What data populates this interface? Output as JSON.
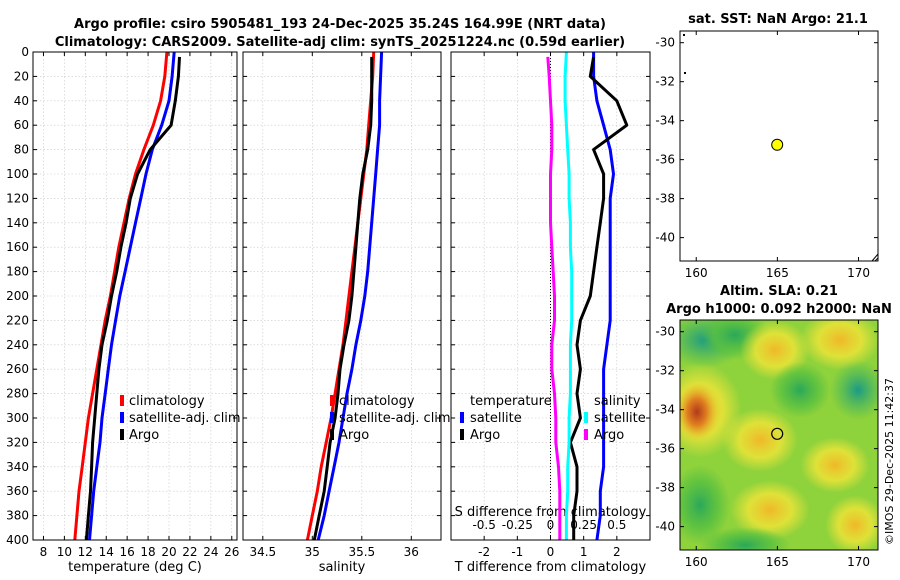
{
  "title": {
    "line1": "Argo profile: csiro 5905481_193 24-Dec-2025 35.24S 164.99E (NRT data)",
    "line2": "Climatology: CARS2009. Satellite-adj clim: synTS_20251224.nc (0.59d earlier)"
  },
  "credit": "©IMOS 29-Dec-2025 11:42:37",
  "colors": {
    "red": "#ff0000",
    "blue": "#0000ff",
    "black": "#000000",
    "magenta": "#ff00ff",
    "cyan": "#00ffff",
    "grid": "#c8c8c8",
    "marker": "#ffff00"
  },
  "chart_data": [
    {
      "id": "temperature",
      "type": "line",
      "xlabel": "temperature (deg C)",
      "ylabel": "",
      "xlim": [
        7,
        26.5
      ],
      "ylim": [
        0,
        400
      ],
      "y_inverted": true,
      "xticks": [
        8,
        10,
        12,
        14,
        16,
        18,
        20,
        22,
        24,
        26
      ],
      "yticks": [
        0,
        20,
        40,
        60,
        80,
        100,
        120,
        140,
        160,
        180,
        200,
        220,
        240,
        260,
        280,
        300,
        320,
        340,
        360,
        380,
        400
      ],
      "grid": true,
      "legend": {
        "position": "lower-right",
        "entries": [
          {
            "label": "climatology",
            "color": "#ff0000"
          },
          {
            "label": "satellite-adj. clim",
            "color": "#0000ff"
          },
          {
            "label": "Argo",
            "color": "#000000"
          }
        ]
      },
      "series": [
        {
          "name": "climatology",
          "color": "#ff0000",
          "x": [
            19.8,
            19.6,
            19.2,
            18.5,
            17.6,
            16.8,
            16.2,
            15.7,
            15.2,
            14.8,
            14.4,
            13.9,
            13.5,
            13.1,
            12.7,
            12.3,
            12.0,
            11.7,
            11.4,
            11.2,
            11.0
          ],
          "y": [
            0,
            20,
            40,
            60,
            80,
            100,
            120,
            140,
            160,
            180,
            200,
            220,
            240,
            260,
            280,
            300,
            320,
            340,
            360,
            380,
            400
          ]
        },
        {
          "name": "satellite-adj. clim",
          "color": "#0000ff",
          "x": [
            20.5,
            20.3,
            20.0,
            19.3,
            18.4,
            17.8,
            17.3,
            16.8,
            16.3,
            15.8,
            15.3,
            14.9,
            14.5,
            14.2,
            13.9,
            13.6,
            13.4,
            13.1,
            12.8,
            12.6,
            12.4
          ],
          "y": [
            0,
            20,
            40,
            60,
            80,
            100,
            120,
            140,
            160,
            180,
            200,
            220,
            240,
            260,
            280,
            300,
            320,
            340,
            360,
            380,
            400
          ]
        },
        {
          "name": "Argo",
          "color": "#000000",
          "x": [
            21.0,
            20.9,
            20.6,
            20.2,
            18.2,
            17.0,
            16.3,
            15.9,
            15.4,
            15.0,
            14.5,
            14.1,
            13.6,
            13.3,
            13.1,
            12.9,
            12.7,
            12.6,
            12.5,
            12.3,
            12.1
          ],
          "y": [
            4,
            20,
            40,
            60,
            80,
            100,
            120,
            140,
            160,
            180,
            200,
            220,
            240,
            260,
            280,
            300,
            320,
            340,
            360,
            380,
            400
          ]
        }
      ]
    },
    {
      "id": "salinity",
      "type": "line",
      "xlabel": "salinity",
      "xlim": [
        34.3,
        36.3
      ],
      "ylim": [
        0,
        400
      ],
      "y_inverted": true,
      "xticks": [
        34.5,
        35,
        35.5,
        36
      ],
      "xticklabels": [
        "34.5",
        "35",
        "35.5",
        "36"
      ],
      "grid": true,
      "legend": {
        "position": "lower-right",
        "entries": [
          {
            "label": "climatology",
            "color": "#ff0000"
          },
          {
            "label": "satellite-adj. clim",
            "color": "#0000ff"
          },
          {
            "label": "Argo",
            "color": "#000000"
          }
        ]
      },
      "series": [
        {
          "name": "climatology",
          "color": "#ff0000",
          "x": [
            35.62,
            35.61,
            35.59,
            35.57,
            35.55,
            35.52,
            35.49,
            35.46,
            35.43,
            35.4,
            35.37,
            35.34,
            35.31,
            35.27,
            35.23,
            35.19,
            35.14,
            35.09,
            35.05,
            35.0,
            34.95
          ],
          "y": [
            0,
            20,
            40,
            60,
            80,
            100,
            120,
            140,
            160,
            180,
            200,
            220,
            240,
            260,
            280,
            300,
            320,
            340,
            360,
            380,
            400
          ]
        },
        {
          "name": "satellite-adj. clim",
          "color": "#0000ff",
          "x": [
            35.7,
            35.69,
            35.68,
            35.68,
            35.66,
            35.64,
            35.62,
            35.6,
            35.58,
            35.56,
            35.53,
            35.49,
            35.44,
            35.4,
            35.35,
            35.31,
            35.27,
            35.22,
            35.17,
            35.12,
            35.06
          ],
          "y": [
            0,
            20,
            40,
            60,
            80,
            100,
            120,
            140,
            160,
            180,
            200,
            220,
            240,
            260,
            280,
            300,
            320,
            340,
            360,
            380,
            400
          ]
        },
        {
          "name": "Argo",
          "color": "#000000",
          "x": [
            35.6,
            35.6,
            35.6,
            35.59,
            35.56,
            35.51,
            35.48,
            35.46,
            35.44,
            35.42,
            35.4,
            35.37,
            35.32,
            35.28,
            35.26,
            35.23,
            35.18,
            35.15,
            35.12,
            35.07,
            35.02
          ],
          "y": [
            4,
            20,
            40,
            60,
            80,
            100,
            120,
            140,
            160,
            180,
            200,
            220,
            240,
            260,
            280,
            300,
            320,
            340,
            360,
            380,
            400
          ]
        }
      ]
    },
    {
      "id": "differences",
      "type": "line",
      "xlabel": "T difference from climatology",
      "xlabel_top": "S difference from climatology",
      "xlim": [
        -3,
        3
      ],
      "x2lim": [
        -0.75,
        0.75
      ],
      "ylim": [
        0,
        400
      ],
      "y_inverted": true,
      "xticks": [
        -2,
        -1,
        0,
        1,
        2
      ],
      "x2ticks": [
        -0.5,
        -0.25,
        0,
        0.25,
        0.5
      ],
      "x2ticklabels": [
        "-0.5",
        "-0.25",
        "0",
        "0.25",
        "0.5"
      ],
      "zero_line": "dotted",
      "grid": true,
      "legend": {
        "position": "lower",
        "entries": [
          {
            "label": "temperature",
            "color": ""
          },
          {
            "label": "satellite",
            "color": "#0000ff"
          },
          {
            "label": "Argo",
            "color": "#000000"
          },
          {
            "label": "salinity",
            "color": ""
          },
          {
            "label": "satellite",
            "color": "#00ffff"
          },
          {
            "label": "Argo",
            "color": "#ff00ff"
          }
        ]
      },
      "series": [
        {
          "name": "T satellite",
          "axis": "T",
          "color": "#0000ff",
          "x": [
            1.3,
            1.3,
            1.4,
            1.6,
            1.8,
            1.9,
            1.8,
            1.8,
            1.8,
            1.8,
            1.8,
            1.8,
            1.7,
            1.6,
            1.6,
            1.6,
            1.6,
            1.6,
            1.5,
            1.5,
            1.4
          ],
          "y": [
            0,
            20,
            40,
            60,
            80,
            100,
            120,
            140,
            160,
            180,
            200,
            220,
            240,
            260,
            280,
            300,
            320,
            340,
            360,
            380,
            400
          ]
        },
        {
          "name": "T Argo",
          "axis": "T",
          "color": "#000000",
          "x": [
            1.3,
            1.2,
            2.0,
            2.3,
            1.3,
            1.6,
            1.6,
            1.5,
            1.4,
            1.3,
            1.2,
            0.9,
            0.8,
            0.9,
            0.8,
            0.9,
            0.6,
            0.8,
            0.8,
            0.7,
            0.7
          ],
          "y": [
            4,
            20,
            40,
            60,
            80,
            100,
            120,
            140,
            160,
            180,
            200,
            220,
            240,
            260,
            280,
            300,
            320,
            340,
            360,
            380,
            400
          ]
        },
        {
          "name": "S satellite",
          "axis": "S",
          "color": "#00ffff",
          "x": [
            0.12,
            0.11,
            0.11,
            0.12,
            0.13,
            0.14,
            0.14,
            0.15,
            0.15,
            0.16,
            0.16,
            0.16,
            0.15,
            0.15,
            0.15,
            0.14,
            0.14,
            0.13,
            0.13,
            0.12,
            0.12
          ],
          "y": [
            0,
            20,
            40,
            60,
            80,
            100,
            120,
            140,
            160,
            180,
            200,
            220,
            240,
            260,
            280,
            300,
            320,
            340,
            360,
            380,
            400
          ]
        },
        {
          "name": "S Argo",
          "axis": "S",
          "color": "#ff00ff",
          "x": [
            -0.02,
            -0.01,
            0.0,
            0.01,
            0.01,
            0.0,
            0.0,
            0.0,
            0.01,
            0.02,
            0.03,
            0.03,
            0.01,
            0.01,
            0.03,
            0.04,
            0.04,
            0.06,
            0.07,
            0.07,
            0.07
          ],
          "y": [
            4,
            20,
            40,
            60,
            80,
            100,
            120,
            140,
            160,
            180,
            200,
            220,
            240,
            260,
            280,
            300,
            320,
            340,
            360,
            380,
            400
          ]
        }
      ]
    },
    {
      "id": "sst_map",
      "type": "scatter",
      "title": "sat. SST: NaN Argo: 21.1",
      "xlim": [
        159,
        171.2
      ],
      "ylim": [
        -41.2,
        -29.4
      ],
      "xticks": [
        160,
        165,
        170
      ],
      "yticks": [
        -30,
        -32,
        -34,
        -36,
        -38,
        -40
      ],
      "points": [
        {
          "lon": 164.99,
          "lat": -35.24,
          "label": "Argo float"
        }
      ]
    },
    {
      "id": "sla_map",
      "type": "heatmap",
      "title": "Altim. SLA: 0.21",
      "subtitle": "Argo h1000: 0.092 h2000: NaN",
      "xlim": [
        159,
        171.2
      ],
      "ylim": [
        -41.2,
        -29.4
      ],
      "xticks": [
        160,
        165,
        170
      ],
      "yticks": [
        -30,
        -32,
        -34,
        -36,
        -38,
        -40
      ],
      "points": [
        {
          "lon": 164.99,
          "lat": -35.24,
          "label": "Argo float"
        }
      ]
    }
  ]
}
